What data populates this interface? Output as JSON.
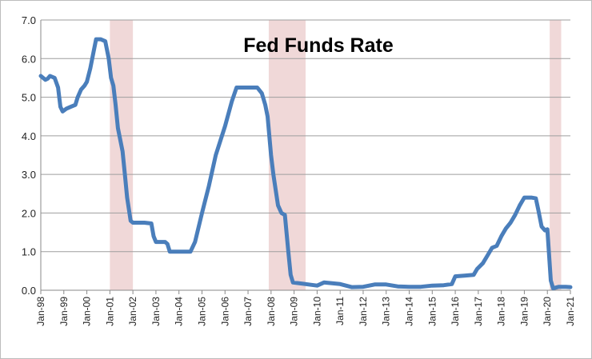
{
  "chart_data": {
    "type": "line",
    "title": "Fed Funds Rate",
    "xlabel": "",
    "ylabel": "",
    "ylim": [
      0,
      7
    ],
    "y_ticks": [
      "0.0",
      "1.0",
      "2.0",
      "3.0",
      "4.0",
      "5.0",
      "6.0",
      "7.0"
    ],
    "x_ticks": [
      "Jan-98",
      "Jan-99",
      "Jan-00",
      "Jan-01",
      "Jan-02",
      "Jan-03",
      "Jan-04",
      "Jan-05",
      "Jan-06",
      "Jan-07",
      "Jan-08",
      "Jan-09",
      "Jan-10",
      "Jan-11",
      "Jan-12",
      "Jan-13",
      "Jan-14",
      "Jan-15",
      "Jan-16",
      "Jan-17",
      "Jan-18",
      "Jan-19",
      "Jan-20",
      "Jan-21"
    ],
    "xlim": [
      1998.0,
      2021.0
    ],
    "grid": "horizontal",
    "line_color": "#4a7ebb",
    "recession_color": "#f0d8d8",
    "recessions": [
      [
        2001.0,
        2002.0
      ],
      [
        2007.9,
        2009.5
      ],
      [
        2020.1,
        2020.6
      ]
    ],
    "series": [
      {
        "name": "Fed Funds Rate",
        "x": [
          1998.0,
          1998.1,
          1998.2,
          1998.3,
          1998.4,
          1998.6,
          1998.75,
          1998.85,
          1998.95,
          1999.1,
          1999.3,
          1999.5,
          1999.6,
          1999.75,
          1999.9,
          2000.0,
          2000.15,
          2000.3,
          2000.4,
          2000.6,
          2000.8,
          2000.95,
          2001.05,
          2001.15,
          2001.25,
          2001.35,
          2001.45,
          2001.55,
          2001.65,
          2001.75,
          2001.9,
          2002.0,
          2002.5,
          2002.8,
          2002.9,
          2003.0,
          2003.4,
          2003.5,
          2003.6,
          2004.0,
          2004.3,
          2004.5,
          2004.7,
          2005.0,
          2005.3,
          2005.6,
          2006.0,
          2006.3,
          2006.5,
          2007.0,
          2007.4,
          2007.6,
          2007.75,
          2007.85,
          2008.0,
          2008.1,
          2008.2,
          2008.3,
          2008.45,
          2008.6,
          2008.75,
          2008.85,
          2008.95,
          2009.5,
          2010.0,
          2010.3,
          2011.0,
          2011.5,
          2012.0,
          2012.5,
          2013.0,
          2013.5,
          2014.0,
          2014.5,
          2015.0,
          2015.5,
          2015.85,
          2016.0,
          2016.4,
          2016.8,
          2016.95,
          2017.2,
          2017.4,
          2017.6,
          2017.8,
          2018.0,
          2018.2,
          2018.4,
          2018.6,
          2018.8,
          2019.0,
          2019.3,
          2019.5,
          2019.6,
          2019.75,
          2019.9,
          2020.0,
          2020.15,
          2020.25,
          2020.5,
          2020.8,
          2021.0
        ],
        "values": [
          5.55,
          5.5,
          5.45,
          5.48,
          5.55,
          5.5,
          5.25,
          4.75,
          4.63,
          4.7,
          4.75,
          4.8,
          5.0,
          5.2,
          5.3,
          5.4,
          5.75,
          6.2,
          6.5,
          6.5,
          6.45,
          6.0,
          5.5,
          5.3,
          4.8,
          4.2,
          3.9,
          3.6,
          3.0,
          2.4,
          1.8,
          1.75,
          1.75,
          1.73,
          1.4,
          1.25,
          1.25,
          1.2,
          1.0,
          1.0,
          1.0,
          1.0,
          1.25,
          2.0,
          2.7,
          3.5,
          4.25,
          4.9,
          5.25,
          5.25,
          5.25,
          5.1,
          4.8,
          4.5,
          3.5,
          3.0,
          2.6,
          2.2,
          2.0,
          1.95,
          1.0,
          0.4,
          0.2,
          0.16,
          0.12,
          0.2,
          0.16,
          0.08,
          0.09,
          0.15,
          0.15,
          0.1,
          0.09,
          0.09,
          0.12,
          0.13,
          0.16,
          0.36,
          0.38,
          0.4,
          0.55,
          0.7,
          0.9,
          1.1,
          1.15,
          1.4,
          1.6,
          1.75,
          1.95,
          2.2,
          2.4,
          2.4,
          2.38,
          2.1,
          1.65,
          1.55,
          1.58,
          0.25,
          0.05,
          0.09,
          0.09,
          0.08
        ]
      }
    ]
  }
}
